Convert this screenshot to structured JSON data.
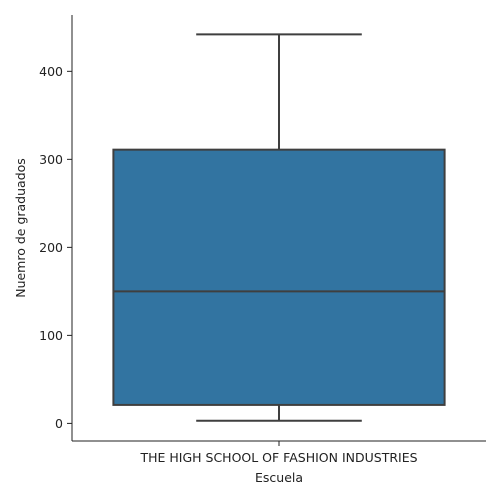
{
  "chart_data": {
    "type": "box",
    "xlabel": "Escuela",
    "ylabel": "Nuemro de graduados",
    "categories": [
      "THE HIGH SCHOOL OF FASHION INDUSTRIES"
    ],
    "boxes": [
      {
        "category": "THE HIGH SCHOOL OF FASHION INDUSTRIES",
        "whisker_low": 3,
        "q1": 21,
        "median": 150,
        "q3": 311,
        "whisker_high": 442
      }
    ],
    "yticks": [
      0,
      100,
      200,
      300,
      400
    ],
    "ylim": [
      -20,
      464
    ],
    "grid": false,
    "box_color": "#3274a1",
    "line_color": "#3f3f3f"
  }
}
